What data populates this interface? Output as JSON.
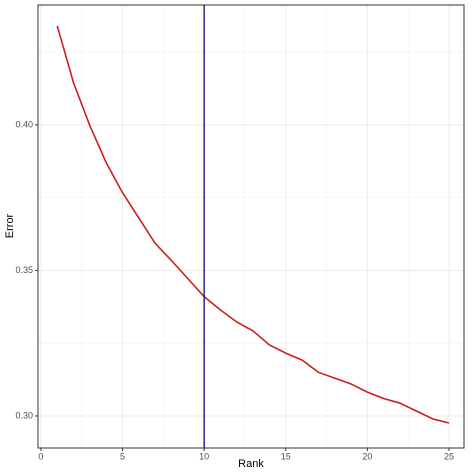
{
  "chart_data": {
    "type": "line",
    "x_label": "Rank",
    "y_label": "Error",
    "x": [
      1,
      2,
      3,
      4,
      5,
      6,
      7,
      8,
      9,
      10,
      11,
      12,
      13,
      14,
      15,
      16,
      17,
      18,
      19,
      20,
      21,
      22,
      23,
      24,
      25
    ],
    "values": [
      0.434,
      0.4144,
      0.3997,
      0.387,
      0.3767,
      0.368,
      0.3593,
      0.3534,
      0.3472,
      0.341,
      0.3364,
      0.3323,
      0.3292,
      0.3244,
      0.3216,
      0.3192,
      0.315,
      0.313,
      0.311,
      0.3082,
      0.306,
      0.3044,
      0.3017,
      0.299,
      0.2976
    ],
    "color": "#cc1f1f",
    "vline": 10,
    "vline_color": "#1a1a8c",
    "xlim": [
      -0.18,
      25.92
    ],
    "ylim": [
      0.289,
      0.4412
    ],
    "xticks": [
      0,
      5,
      10,
      15,
      20,
      25
    ],
    "yticks": [
      {
        "value": 0.3,
        "label": "0.30"
      },
      {
        "value": 0.35,
        "label": "0.35"
      },
      {
        "value": 0.4,
        "label": "0.40"
      }
    ],
    "x_minor_grid": [
      2.5,
      7.5,
      12.5,
      17.5,
      22.5
    ],
    "y_minor_grid": [
      0.325,
      0.375,
      0.425
    ],
    "grid": true
  }
}
